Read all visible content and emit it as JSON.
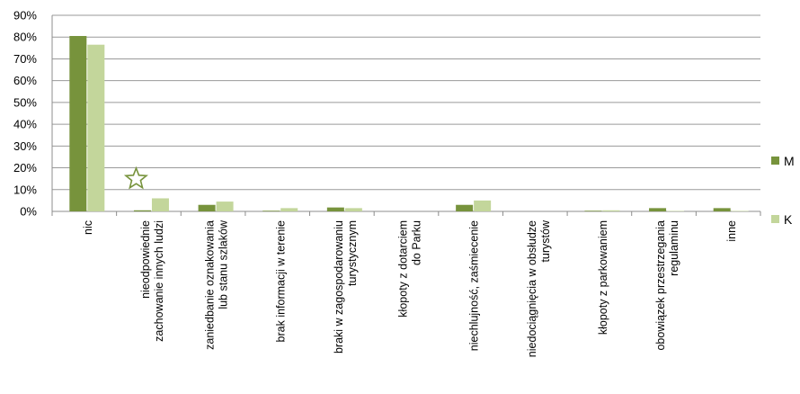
{
  "chart_data": {
    "type": "bar",
    "title": "",
    "xlabel": "",
    "ylabel": "",
    "ylim": [
      0,
      90
    ],
    "y_ticks": [
      "0%",
      "10%",
      "20%",
      "30%",
      "40%",
      "50%",
      "60%",
      "70%",
      "80%",
      "90%"
    ],
    "grid": true,
    "legend_position": "right",
    "categories": [
      [
        "nic"
      ],
      [
        "nieodpowiednie",
        "zachowanie innych ludzi"
      ],
      [
        "zaniedbanie oznakowania",
        "lub stanu szlaków"
      ],
      [
        "brak informacji w terenie"
      ],
      [
        "braki w zagospodarowaniu",
        "turystycznym"
      ],
      [
        "kłopoty z dotarciem",
        "do Parku"
      ],
      [
        "niechlujność, zaśmiecenie"
      ],
      [
        "niedociągnięcia w obsłudze",
        "turystów"
      ],
      [
        "kłopoty z parkowaniem"
      ],
      [
        "obowiązek przestrzegania",
        "regulaminu"
      ],
      [
        "inne"
      ]
    ],
    "series": [
      {
        "name": "M",
        "color": "#77933c",
        "values": [
          80.5,
          0.5,
          3.0,
          0.3,
          1.8,
          0.0,
          3.0,
          0.0,
          0.3,
          1.5,
          1.5
        ]
      },
      {
        "name": "K",
        "color": "#c3d69b",
        "values": [
          76.5,
          6.0,
          4.5,
          1.5,
          1.5,
          0.0,
          5.0,
          0.0,
          0.5,
          0.2,
          0.2
        ]
      }
    ],
    "annotation": {
      "type": "star-icon",
      "category_index": 1,
      "color": "#77933c"
    }
  }
}
